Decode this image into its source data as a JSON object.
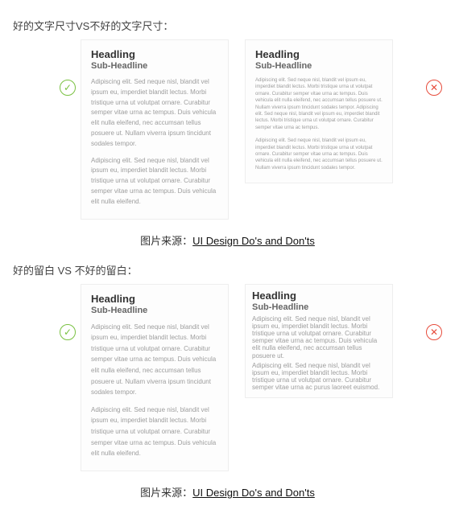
{
  "section1": {
    "title": "好的文字尺寸VS不好的文字尺寸：",
    "good": {
      "headline": "Headling",
      "subheadline": "Sub-Headline",
      "p1": "Adipiscing elit. Sed neque nisl, blandit vel ipsum eu, imperdiet blandit lectus. Morbi tristique urna ut volutpat ornare. Curabitur semper vitae urna ac tempus. Duis vehicula elit nulla eleifend, nec accumsan tellus posuere ut. Nullam viverra ipsum tincidunt sodales tempor.",
      "p2": "Adipiscing elit. Sed neque nisl, blandit vel ipsum eu, imperdiet blandit lectus. Morbi tristique urna ut volutpat ornare. Curabitur semper vitae urna ac tempus. Duis vehicula elit nulla eleifend."
    },
    "bad": {
      "headline": "Headling",
      "subheadline": "Sub-Headline",
      "p1": "Adipiscing elit. Sed neque nisl, blandit vel ipsum eu, imperdiet blandit lectus. Morbi tristique urna ut volutpat ornare. Curabitur semper vitae urna ac tempus. Duis vehicula elit nulla eleifend, nec accumsan tellus posuere ut. Nullam viverra ipsum tincidunt sodales tempor. Adipiscing elit. Sed neque nisl, blandit vel ipsum eu, imperdiet blandit lectus. Morbi tristique urna ut volutpat ornare. Curabitur semper vitae urna ac tempus.",
      "p2": "Adipiscing elit. Sed neque nisl, blandit vel ipsum eu, imperdiet blandit lectus. Morbi tristique urna ut volutpat ornare. Curabitur semper vitae urna ac tempus. Duis vehicula elit nulla eleifend, nec accumsan tellus posuere ut. Nullam viverra ipsum tincidunt sodales tempor."
    }
  },
  "section2": {
    "title": "好的留白 VS 不好的留白：",
    "good": {
      "headline": "Headling",
      "subheadline": "Sub-Headline",
      "p1": "Adipiscing elit. Sed neque nisl, blandit vel ipsum eu, imperdiet blandit lectus. Morbi tristique urna ut volutpat ornare. Curabitur semper vitae urna ac tempus. Duis vehicula elit nulla eleifend, nec accumsan tellus posuere ut. Nullam viverra ipsum tincidunt sodales tempor.",
      "p2": "Adipiscing elit. Sed neque nisl, blandit vel ipsum eu, imperdiet blandit lectus. Morbi tristique urna ut volutpat ornare. Curabitur semper vitae urna ac tempus. Duis vehicula elit nulla eleifend."
    },
    "bad": {
      "headline": "Headling",
      "subheadline": "Sub-Headline",
      "p1": "Adipiscing elit. Sed neque nisl, blandit vel ipsum eu, imperdiet blandit lectus. Morbi tristique urna ut volutpat ornare. Curabitur semper vitae urna ac tempus. Duis vehicula elit nulla eleifend, nec accumsan tellus posuere ut.",
      "p2": "Adipiscing elit. Sed neque nisl, blandit vel ipsum eu, imperdiet blandit lectus. Morbi tristique urna ut volutpat ornare. Curabitur semper vitae urna ac purus laoreet euismod."
    }
  },
  "source": {
    "prefix": "图片来源：",
    "link_text": "UI Design Do's and Don'ts"
  },
  "icons": {
    "ok": "✓",
    "no": "✕"
  },
  "colors": {
    "ok": "#7ac142",
    "no": "#e74c3c",
    "heading": "#333333",
    "subheading": "#666666",
    "body": "#9d9d9d",
    "card_bg": "#fdfdfd",
    "card_border": "#eeeeee"
  }
}
